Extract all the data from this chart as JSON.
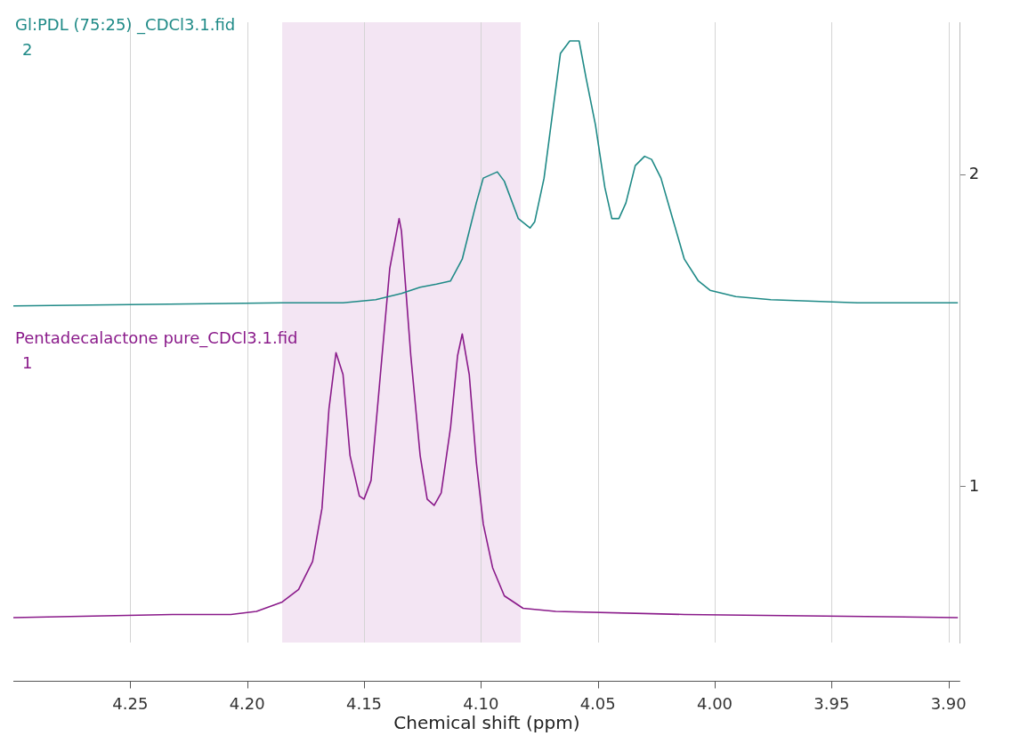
{
  "chart_data": {
    "type": "line",
    "xlabel": "Chemical shift (ppm)",
    "xlim": [
      4.3,
      3.895
    ],
    "xticks": [
      4.25,
      {
        "value": 4.2,
        "label": "4.20"
      },
      4.15,
      {
        "value": 4.1,
        "label": "4.10"
      },
      4.05,
      {
        "value": 4.0,
        "label": "4.00"
      },
      3.95,
      {
        "value": 3.9,
        "label": "3.90"
      }
    ],
    "ylim": [
      0.5,
      2.49
    ],
    "yticks": [
      1,
      2
    ],
    "grid": "x",
    "marker": "none",
    "line_style": "solid",
    "bands": [
      {
        "axis": "x",
        "from": 4.185,
        "to": 4.083,
        "color": "#f3e5f3"
      }
    ],
    "annotations": [
      "2",
      "1"
    ],
    "series": [
      {
        "name": "Gl:PDL (75:25) _CDCl3.1.fid",
        "color": "#1f8a87",
        "x": [
          4.3,
          4.185,
          4.159,
          4.145,
          4.134,
          4.126,
          4.119,
          4.113,
          4.108,
          4.102,
          4.099,
          4.093,
          4.09,
          4.084,
          4.079,
          4.077,
          4.073,
          4.069,
          4.066,
          4.062,
          4.058,
          4.055,
          4.051,
          4.047,
          4.044,
          4.041,
          4.038,
          4.034,
          4.03,
          4.027,
          4.023,
          4.018,
          4.013,
          4.007,
          4.002,
          3.991,
          3.976,
          3.939,
          3.914,
          3.91,
          3.896
        ],
        "values": [
          1.58,
          1.59,
          1.59,
          1.6,
          1.62,
          1.64,
          1.65,
          1.66,
          1.73,
          1.91,
          1.99,
          2.01,
          1.98,
          1.86,
          1.83,
          1.85,
          1.99,
          2.22,
          2.39,
          2.43,
          2.43,
          2.31,
          2.16,
          1.96,
          1.86,
          1.86,
          1.91,
          2.03,
          2.06,
          2.05,
          1.99,
          1.86,
          1.73,
          1.66,
          1.63,
          1.61,
          1.6,
          1.59,
          1.59,
          1.59,
          1.59
        ]
      },
      {
        "name": "Pentadecalactone pure_CDCl3.1.fid",
        "color": "#8a1a8a",
        "x": [
          4.3,
          4.232,
          4.207,
          4.196,
          4.185,
          4.178,
          4.172,
          4.168,
          4.165,
          4.162,
          4.159,
          4.156,
          4.152,
          4.15,
          4.147,
          4.143,
          4.139,
          4.135,
          4.134,
          4.13,
          4.126,
          4.123,
          4.12,
          4.117,
          4.113,
          4.11,
          4.108,
          4.105,
          4.102,
          4.099,
          4.095,
          4.09,
          4.082,
          4.068,
          4.013,
          3.896
        ],
        "values": [
          0.58,
          0.59,
          0.59,
          0.6,
          0.63,
          0.67,
          0.76,
          0.93,
          1.25,
          1.43,
          1.36,
          1.1,
          0.97,
          0.96,
          1.02,
          1.36,
          1.7,
          1.86,
          1.82,
          1.42,
          1.1,
          0.96,
          0.94,
          0.98,
          1.19,
          1.42,
          1.49,
          1.36,
          1.08,
          0.88,
          0.74,
          0.65,
          0.61,
          0.6,
          0.59,
          0.58
        ]
      }
    ]
  }
}
